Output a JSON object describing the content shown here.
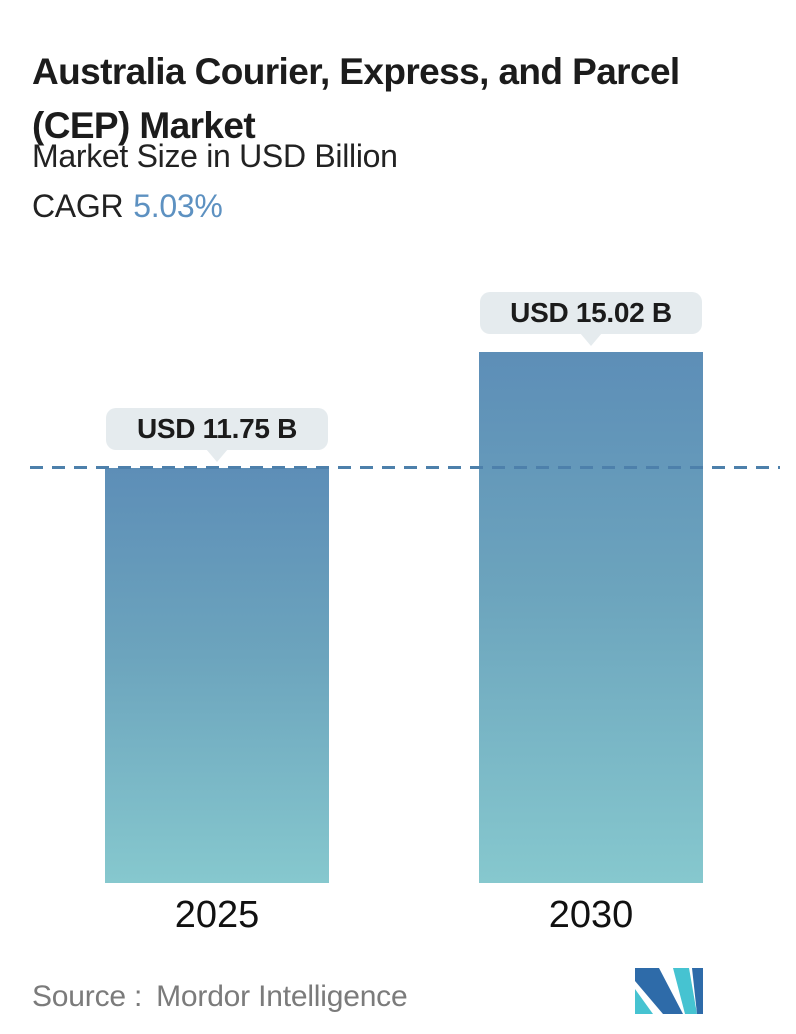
{
  "header": {
    "title_line1": "Australia Courier, Express, and Parcel",
    "title_line2": "(CEP) Market",
    "subtitle": "Market Size in USD Billion",
    "cagr_label": "CAGR",
    "cagr_value": "5.03%"
  },
  "chart_data": {
    "type": "bar",
    "title": "Australia Courier, Express, and Parcel (CEP) Market",
    "subtitle": "Market Size in USD Billion",
    "cagr": "5.03%",
    "categories": [
      "2025",
      "2030"
    ],
    "values": [
      11.75,
      15.02
    ],
    "value_labels": [
      "USD 11.75 B",
      "USD 15.02 B"
    ],
    "unit": "USD Billion",
    "ylim": [
      0,
      16
    ],
    "grid": "off",
    "legend": "none",
    "reference_line": {
      "value": 11.75,
      "style": "dashed",
      "color": "#4d80ab"
    },
    "bar_gradient_top": "#5d8eb7",
    "bar_gradient_bottom": "#86c8ce"
  },
  "footer": {
    "source_label": "Source :",
    "source_value": "Mordor Intelligence",
    "logo_icon": "mordor-intelligence-logo"
  },
  "colors": {
    "cagr_accent": "#5d91c1",
    "title_text": "#1c1c1c",
    "source_gray": "#7b7b7b",
    "callout_bg": "#e5ebee",
    "dashed_line": "#4d80ab",
    "logo_blue": "#2e6ba9",
    "logo_teal": "#46c3d1"
  }
}
